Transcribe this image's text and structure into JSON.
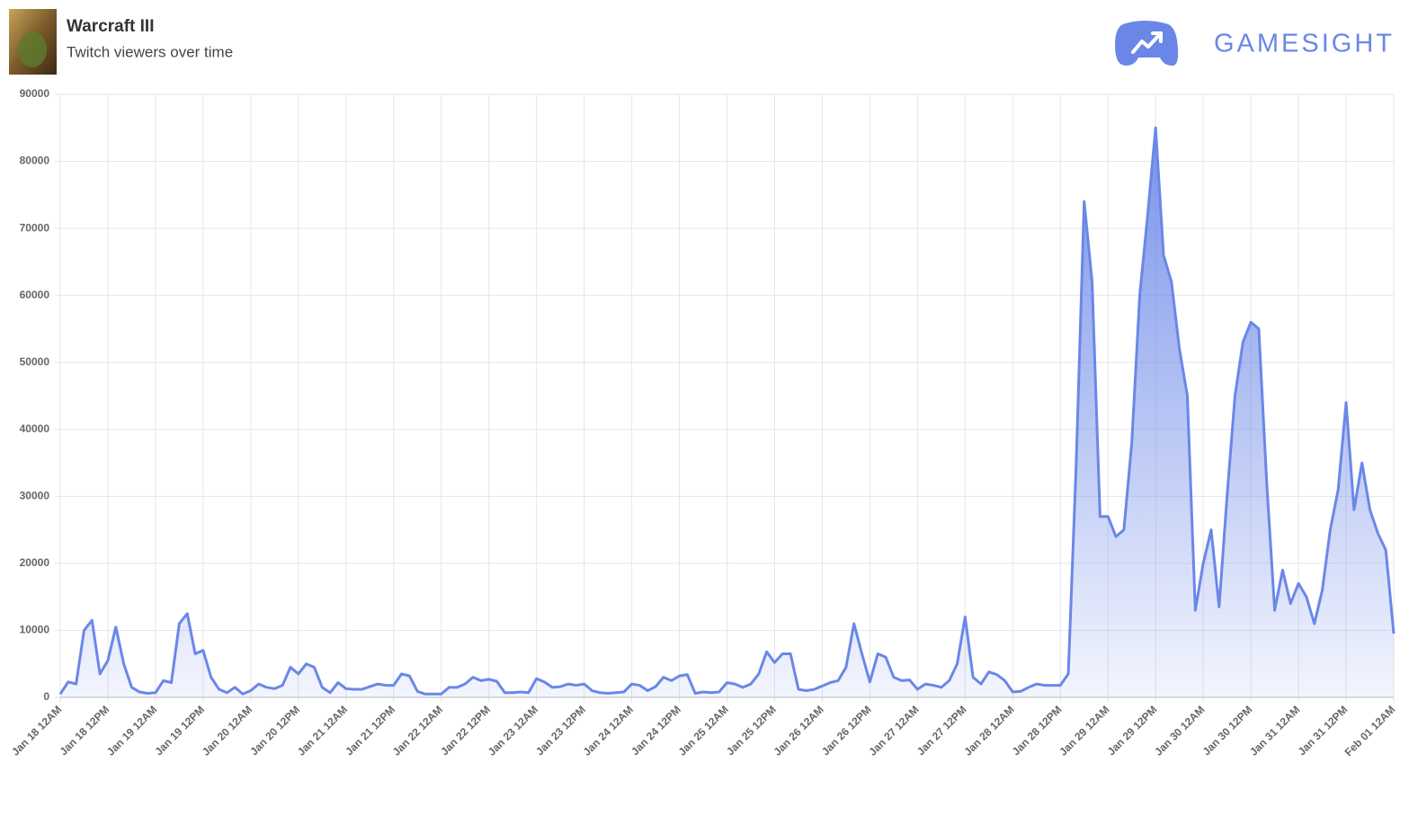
{
  "brand": "GAMESIGHT",
  "chart_data": {
    "type": "area",
    "title": "Warcraft III",
    "subtitle": "Twitch viewers over time",
    "color": "#6a87e8",
    "grid": true,
    "ylim": [
      0,
      90000
    ],
    "yticks": [
      0,
      10000,
      20000,
      30000,
      40000,
      50000,
      60000,
      70000,
      80000,
      90000
    ],
    "categories": [
      "Jan 18 12AM",
      null,
      null,
      null,
      null,
      null,
      "Jan 18 12PM",
      null,
      null,
      null,
      null,
      null,
      "Jan 19 12AM",
      null,
      null,
      null,
      null,
      null,
      "Jan 19 12PM",
      null,
      null,
      null,
      null,
      null,
      "Jan 20 12AM",
      null,
      null,
      null,
      null,
      null,
      "Jan 20 12PM",
      null,
      null,
      null,
      null,
      null,
      "Jan 21 12AM",
      null,
      null,
      null,
      null,
      null,
      "Jan 21 12PM",
      null,
      null,
      null,
      null,
      null,
      "Jan 22 12AM",
      null,
      null,
      null,
      null,
      null,
      "Jan 22 12PM",
      null,
      null,
      null,
      null,
      null,
      "Jan 23 12AM",
      null,
      null,
      null,
      null,
      null,
      "Jan 23 12PM",
      null,
      null,
      null,
      null,
      null,
      "Jan 24 12AM",
      null,
      null,
      null,
      null,
      null,
      "Jan 24 12PM",
      null,
      null,
      null,
      null,
      null,
      "Jan 25 12AM",
      null,
      null,
      null,
      null,
      null,
      "Jan 25 12PM",
      null,
      null,
      null,
      null,
      null,
      "Jan 26 12AM",
      null,
      null,
      null,
      null,
      null,
      "Jan 26 12PM",
      null,
      null,
      null,
      null,
      null,
      "Jan 27 12AM",
      null,
      null,
      null,
      null,
      null,
      "Jan 27 12PM",
      null,
      null,
      null,
      null,
      null,
      "Jan 28 12AM",
      null,
      null,
      null,
      null,
      null,
      "Jan 28 12PM",
      null,
      null,
      null,
      null,
      null,
      "Jan 29 12AM",
      null,
      null,
      null,
      null,
      null,
      "Jan 29 12PM",
      null,
      null,
      null,
      null,
      null,
      "Jan 30 12AM",
      null,
      null,
      null,
      null,
      null,
      "Jan 30 12PM",
      null,
      null,
      null,
      null,
      null,
      "Jan 31 12AM",
      null,
      null,
      null,
      null,
      null,
      "Jan 31 12PM",
      null,
      null,
      null,
      null,
      null,
      "Feb 01 12AM"
    ],
    "values": [
      500,
      2300,
      2000,
      10000,
      11500,
      3500,
      5500,
      10500,
      5000,
      1500,
      800,
      600,
      700,
      2500,
      2200,
      11000,
      12500,
      6500,
      7000,
      3000,
      1200,
      700,
      1500,
      500,
      1000,
      2000,
      1500,
      1300,
      1800,
      4500,
      3500,
      5000,
      4500,
      1500,
      700,
      2200,
      1300,
      1200,
      1200,
      1600,
      2000,
      1800,
      1800,
      3500,
      3200,
      900,
      500,
      500,
      500,
      1500,
      1500,
      2000,
      3000,
      2500,
      2700,
      2400,
      700,
      700,
      800,
      700,
      2800,
      2300,
      1500,
      1600,
      2000,
      1800,
      2000,
      1000,
      700,
      600,
      700,
      800,
      2000,
      1800,
      1000,
      1600,
      3000,
      2500,
      3200,
      3400,
      600,
      800,
      700,
      800,
      2200,
      2000,
      1500,
      2000,
      3500,
      6800,
      5200,
      6500,
      6500,
      1200,
      1000,
      1200,
      1700,
      2200,
      2500,
      4500,
      11000,
      6500,
      2300,
      6500,
      6000,
      3000,
      2500,
      2600,
      1200,
      2000,
      1800,
      1500,
      2500,
      5000,
      12000,
      3000,
      2000,
      3800,
      3400,
      2500,
      800,
      900,
      1500,
      2000,
      1800,
      1800,
      1800,
      3500,
      35000,
      74000,
      62000,
      27000,
      27000,
      24000,
      25000,
      38000,
      60000,
      72000,
      85000,
      66000,
      62000,
      52000,
      45000,
      13000,
      20000,
      25000,
      13500,
      30000,
      45000,
      53000,
      56000,
      55000,
      32000,
      13000,
      19000,
      14000,
      17000,
      15000,
      11000,
      16000,
      25000,
      31000,
      44000,
      28000,
      35000,
      28000,
      24500,
      22000,
      9500
    ]
  }
}
